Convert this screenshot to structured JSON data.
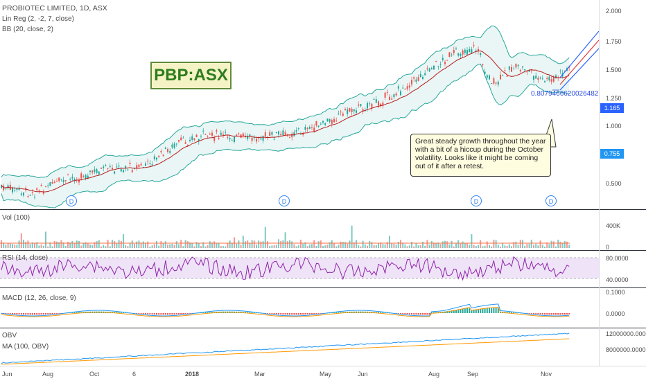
{
  "header": {
    "title": "PROBIOTEC LIMITED, 1D, ASX",
    "study1": "Lin Reg (2, -2, 7, close)",
    "study2": "BB (20, close, 2)"
  },
  "symbol_label": "PBP:ASX",
  "annotation": "Great steady growth throughout the year with a bit of a hiccup during the October volatility. Looks like it might be coming out of it after a retest.",
  "fib_text": "0.8079466620026482",
  "price_axis": {
    "ticks": [
      "2.000",
      "1.750",
      "1.500",
      "1.250",
      "1.000",
      "0.500"
    ],
    "current_price": "1.165",
    "marker_price": "0.755",
    "current_color": "#2962ff",
    "marker_color": "#2196f3"
  },
  "dividend_mark": "D",
  "panes": {
    "vol": {
      "label": "Vol (100)",
      "ticks": [
        "400K",
        "0"
      ]
    },
    "rsi": {
      "label": "RSI (14, close)",
      "ticks": [
        "80.0000",
        "40.0000"
      ]
    },
    "macd": {
      "label": "MACD (12, 26, close, 9)",
      "ticks": [
        "0.1000",
        "0.0000"
      ]
    },
    "obv": {
      "label": "OBV",
      "label2": "MA (100, OBV)",
      "ticks": [
        "12000000.0000",
        "8000000.0000"
      ]
    }
  },
  "time_axis": [
    "Jun",
    "Aug",
    "Oct",
    "6",
    "2018",
    "Mar",
    "May",
    "Jun",
    "Aug",
    "Sep",
    "Nov"
  ],
  "colors": {
    "up": "#26a69a",
    "down": "#ef5350",
    "ma": "#b71c1c",
    "bb": "#26a69a",
    "rsi": "#8e24aa",
    "macd": "#2196f3",
    "signal": "#ff9800",
    "linreg": "#2962ff"
  }
}
